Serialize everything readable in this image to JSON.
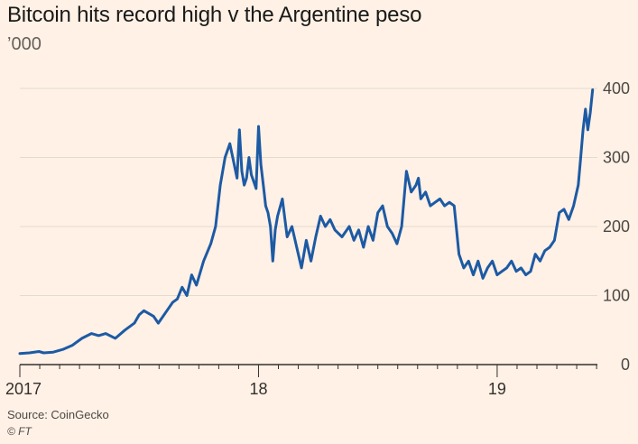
{
  "chart_data": {
    "type": "line",
    "title": "Bitcoin hits record high v the Argentine peso",
    "subtitle": "’000",
    "source": "Source: CoinGecko",
    "credit": "© FT",
    "xlim": [
      2017.0,
      2019.42
    ],
    "ylim": [
      0,
      400
    ],
    "y_ticks": [
      0,
      100,
      200,
      300,
      400
    ],
    "y_tick_labels": [
      "0",
      "100",
      "200",
      "300",
      "400"
    ],
    "x_ticks": [
      2017.0,
      2018.0,
      2019.0
    ],
    "x_tick_labels": [
      "2017",
      "18",
      "19"
    ],
    "grid": "horizontal",
    "line_color": "#1d5aa4",
    "series": [
      {
        "x": [
          2017.0,
          2017.04,
          2017.08,
          2017.1,
          2017.14,
          2017.18,
          2017.22,
          2017.26,
          2017.3,
          2017.33,
          2017.36,
          2017.4,
          2017.44,
          2017.48,
          2017.5,
          2017.52,
          2017.56,
          2017.58,
          2017.62,
          2017.64,
          2017.66,
          2017.68,
          2017.7,
          2017.72,
          2017.74,
          2017.77,
          2017.8,
          2017.82,
          2017.84,
          2017.86,
          2017.88,
          2017.91,
          2017.92,
          2017.93,
          2017.94,
          2017.95,
          2017.96,
          2017.97,
          2017.98,
          2017.99,
          2018.0,
          2018.01,
          2018.02,
          2018.03,
          2018.04,
          2018.05,
          2018.06,
          2018.07,
          2018.08,
          2018.1,
          2018.12,
          2018.14,
          2018.16,
          2018.18,
          2018.2,
          2018.22,
          2018.24,
          2018.26,
          2018.28,
          2018.3,
          2018.32,
          2018.35,
          2018.38,
          2018.4,
          2018.42,
          2018.44,
          2018.46,
          2018.48,
          2018.5,
          2018.52,
          2018.54,
          2018.56,
          2018.58,
          2018.6,
          2018.62,
          2018.64,
          2018.66,
          2018.67,
          2018.68,
          2018.7,
          2018.72,
          2018.74,
          2018.76,
          2018.78,
          2018.8,
          2018.82,
          2018.84,
          2018.86,
          2018.88,
          2018.9,
          2018.92,
          2018.94,
          2018.96,
          2018.98,
          2019.0,
          2019.02,
          2019.04,
          2019.06,
          2019.08,
          2019.1,
          2019.12,
          2019.14,
          2019.16,
          2019.18,
          2019.2,
          2019.22,
          2019.24,
          2019.26,
          2019.28,
          2019.3,
          2019.32,
          2019.34,
          2019.35,
          2019.36,
          2019.37,
          2019.38,
          2019.39,
          2019.4
        ],
        "values": [
          16,
          17,
          19,
          17,
          18,
          22,
          28,
          38,
          45,
          42,
          45,
          38,
          50,
          60,
          72,
          78,
          70,
          60,
          80,
          90,
          95,
          112,
          100,
          130,
          115,
          150,
          175,
          200,
          260,
          300,
          320,
          270,
          340,
          280,
          260,
          270,
          300,
          275,
          265,
          255,
          345,
          290,
          260,
          230,
          220,
          200,
          150,
          195,
          215,
          240,
          185,
          200,
          170,
          140,
          180,
          150,
          185,
          215,
          200,
          210,
          195,
          185,
          200,
          180,
          195,
          170,
          200,
          180,
          220,
          230,
          200,
          190,
          175,
          200,
          280,
          250,
          260,
          270,
          240,
          250,
          230,
          235,
          240,
          230,
          235,
          230,
          160,
          140,
          150,
          130,
          150,
          125,
          140,
          150,
          130,
          135,
          140,
          150,
          135,
          140,
          130,
          135,
          160,
          150,
          165,
          170,
          180,
          220,
          225,
          210,
          230,
          260,
          300,
          340,
          370,
          340,
          365,
          398
        ]
      }
    ]
  }
}
